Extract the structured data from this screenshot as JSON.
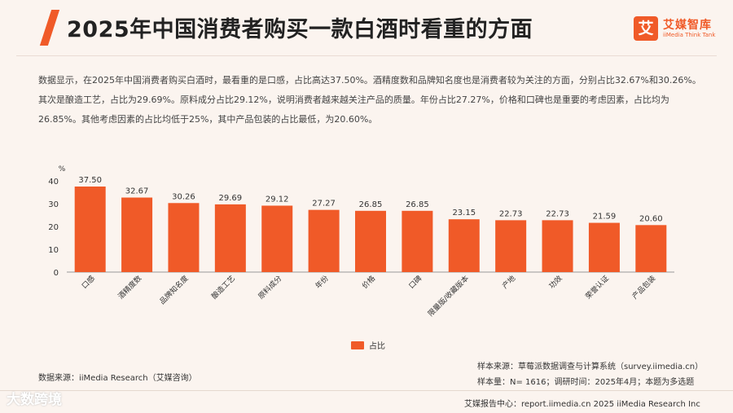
{
  "header": {
    "title": "2025年中国消费者购买一款白酒时看重的方面",
    "logo_mark": "艾",
    "logo_cn": "艾媒智库",
    "logo_en": "iiMedia Think Tank"
  },
  "description": "数据显示，在2025年中国消费者购买白酒时，最看重的是口感，占比高达37.50%。酒精度数和品牌知名度也是消费者较为关注的方面，分别占比32.67%和30.26%。其次是酿造工艺，占比为29.69%。原料成分占比29.12%，说明消费者越来越关注产品的质量。年份占比27.27%，价格和口碑也是重要的考虑因素，占比均为26.85%。其他考虑因素的占比均低于25%，其中产品包装的占比最低，为20.60%。",
  "chart_data": {
    "type": "bar",
    "unit_label": "%",
    "categories": [
      "口感",
      "酒精度数",
      "品牌知名度",
      "酿造工艺",
      "原料成分",
      "年份",
      "价格",
      "口碑",
      "限量版/收藏版本",
      "产地",
      "功效",
      "荣誉认证",
      "产品包装"
    ],
    "series": [
      {
        "name": "占比",
        "values": [
          37.5,
          32.67,
          30.26,
          29.69,
          29.12,
          27.27,
          26.85,
          26.85,
          23.15,
          22.73,
          22.73,
          21.59,
          20.6
        ],
        "value_labels": [
          "37.50",
          "32.67",
          "30.26",
          "29.69",
          "29.12",
          "27.27",
          "26.85",
          "26.85",
          "23.15",
          "22.73",
          "22.73",
          "21.59",
          "20.60"
        ]
      }
    ],
    "yticks": [
      "0",
      "10",
      "20",
      "30",
      "40"
    ],
    "ylim": [
      0,
      40
    ],
    "legend": "bottom-center",
    "grid": false
  },
  "sources": {
    "data_source": "数据来源：iiMedia Research（艾媒咨询）",
    "sample_source": "样本来源：草莓派数据调查与计算系统（survey.iimedia.cn）",
    "sample_size": "样本量：N= 1616；调研时间：2025年4月；本题为多选题"
  },
  "footer": {
    "text": "艾媒报告中心：report.iimedia.cn  2025 iiMedia Research Inc"
  },
  "watermark": "大数跨境",
  "colors": {
    "bar": "#f05a28",
    "accent": "#f05a28",
    "background": "#fbf4ef"
  }
}
